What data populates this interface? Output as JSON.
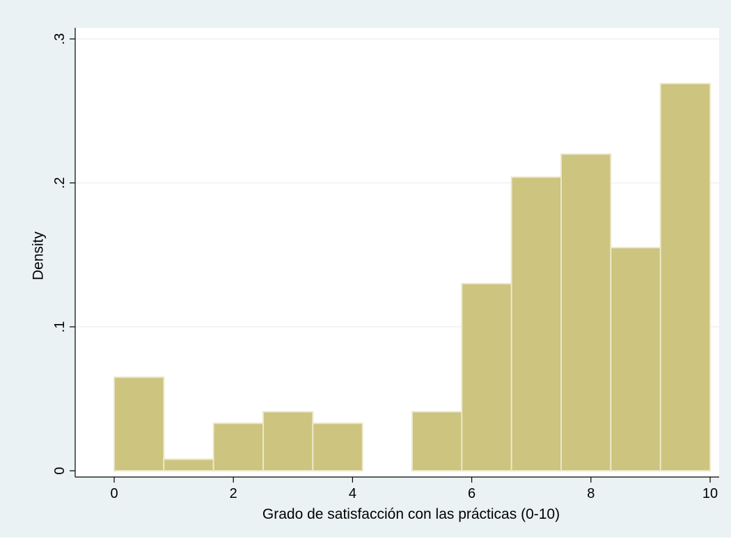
{
  "chart_data": {
    "type": "bar",
    "title": "",
    "xlabel": "Grado de satisfacción con las prácticas (0-10)",
    "ylabel": "Density",
    "xlim": [
      0,
      10
    ],
    "ylim": [
      0,
      0.3
    ],
    "xticks": [
      0,
      2,
      4,
      6,
      8,
      10
    ],
    "xtick_labels": [
      "0",
      "2",
      "4",
      "6",
      "8",
      "10"
    ],
    "yticks": [
      0,
      0.1,
      0.2,
      0.3
    ],
    "ytick_labels": [
      "0",
      ".1",
      ".2",
      ".3"
    ],
    "grid": true,
    "legend": "none",
    "bins": [
      {
        "start": 0.0,
        "end": 0.833,
        "value": 0.065
      },
      {
        "start": 0.833,
        "end": 1.667,
        "value": 0.008
      },
      {
        "start": 1.667,
        "end": 2.5,
        "value": 0.033
      },
      {
        "start": 2.5,
        "end": 3.333,
        "value": 0.041
      },
      {
        "start": 3.333,
        "end": 4.167,
        "value": 0.033
      },
      {
        "start": 4.167,
        "end": 5.0,
        "value": 0.0
      },
      {
        "start": 5.0,
        "end": 5.833,
        "value": 0.041
      },
      {
        "start": 5.833,
        "end": 6.667,
        "value": 0.13
      },
      {
        "start": 6.667,
        "end": 7.5,
        "value": 0.204
      },
      {
        "start": 7.5,
        "end": 8.333,
        "value": 0.22
      },
      {
        "start": 8.333,
        "end": 9.167,
        "value": 0.155
      },
      {
        "start": 9.167,
        "end": 10.0,
        "value": 0.269
      }
    ],
    "colors": {
      "background": "#eaf2f3",
      "plot_background": "#ffffff",
      "bar_fill": "#ccc47f",
      "bar_edge": "#ebe8c7",
      "grid": "#eaf2f3",
      "axis": "#000000"
    }
  }
}
